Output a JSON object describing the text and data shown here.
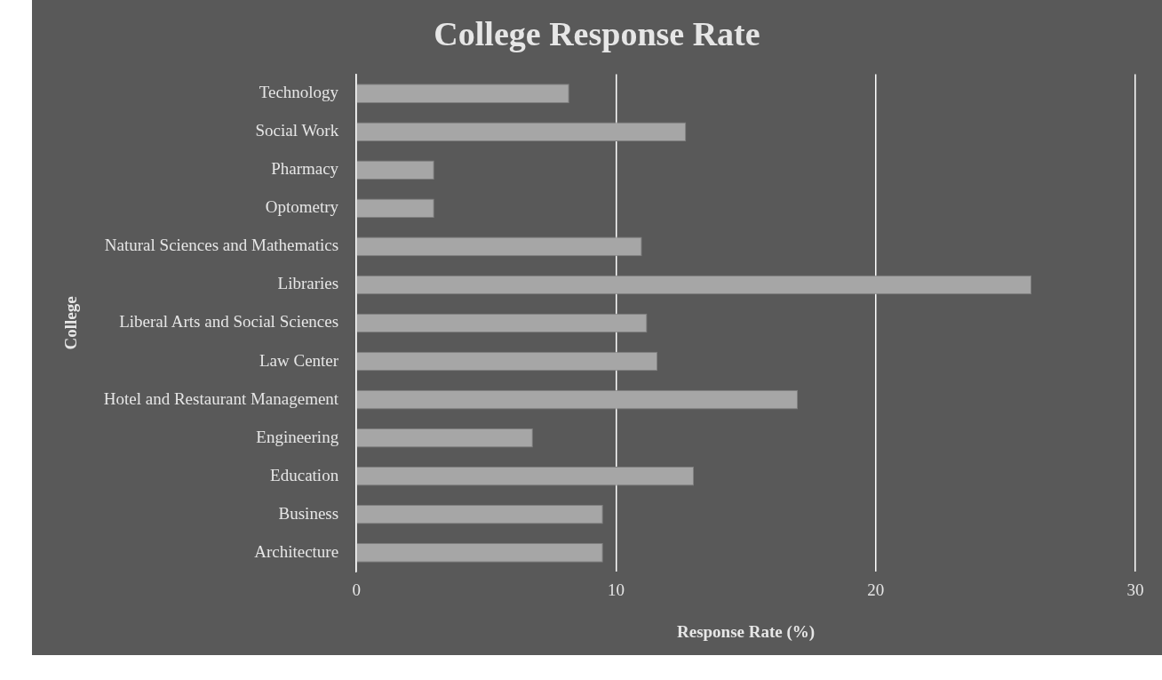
{
  "chart_data": {
    "type": "bar",
    "orientation": "horizontal",
    "title": "College Response Rate",
    "xlabel": "Response Rate (%)",
    "ylabel": "College",
    "categories": [
      "Technology",
      "Social Work",
      "Pharmacy",
      "Optometry",
      "Natural Sciences and Mathematics",
      "Libraries",
      "Liberal Arts and Social Sciences",
      "Law Center",
      "Hotel and Restaurant Management",
      "Engineering",
      "Education",
      "Business",
      "Architecture"
    ],
    "values": [
      8.2,
      12.7,
      3.0,
      3.0,
      11.0,
      26.0,
      11.2,
      11.6,
      17.0,
      6.8,
      13.0,
      9.5,
      9.5
    ],
    "color": "#a6a6a6",
    "xlim": [
      0,
      30
    ],
    "xticks": [
      0,
      10,
      20,
      30
    ],
    "grid": "x",
    "legend": false
  }
}
